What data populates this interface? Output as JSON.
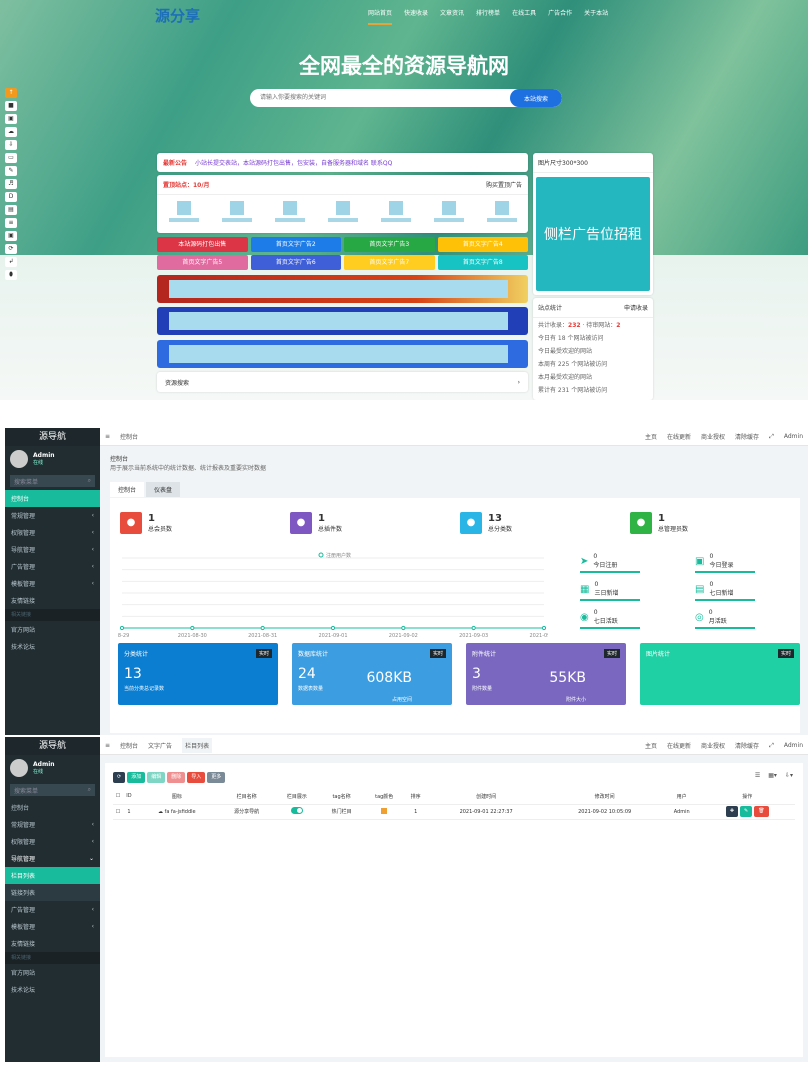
{
  "site": {
    "logo": "源分享",
    "nav": [
      "网站首页",
      "快速收录",
      "文章资讯",
      "排行榜单",
      "在线工具",
      "广告合作",
      "关于本站"
    ],
    "headline": "全网最全的资源导航网",
    "search": {
      "placeholder": "请输入你要搜索的关键词",
      "button": "本站搜索"
    },
    "float_tools": [
      "↑",
      "■",
      "▣",
      "☁",
      "⇩",
      "▭",
      "✎",
      "♬",
      "D",
      "▤",
      "≡",
      "▣",
      "⟳",
      "↲",
      "⬮"
    ],
    "notice": {
      "label": "最新公告",
      "text": "小站长提交表站，本站源码打包出售，包安装，自备服务器和域名 联系QQ"
    },
    "recommend": {
      "title": "置顶站点：10/月",
      "buy": "购买置顶广告"
    },
    "ad_buttons": [
      {
        "label": "本站源码打包出售",
        "color": "#dc3545"
      },
      {
        "label": "首页文字广告2",
        "color": "#1e7ce8"
      },
      {
        "label": "首页文字广告3",
        "color": "#28a745"
      },
      {
        "label": "首页文字广告4",
        "color": "#ffc107"
      },
      {
        "label": "首页文字广告5",
        "color": "#e06c9f"
      },
      {
        "label": "首页文字广告6",
        "color": "#3f5fd8"
      },
      {
        "label": "首页文字广告7",
        "color": "#ffcd1f"
      },
      {
        "label": "首页文字广告8",
        "color": "#17c3c3"
      }
    ],
    "resource_search": "资源搜索",
    "side_ad": {
      "title": "图片尺寸300*300",
      "text": "侧栏广告位招租",
      "color": "#25b7bf"
    },
    "stats": {
      "title": "站点统计",
      "apply": "申请收录",
      "total_label": "共计收录：",
      "total": "232",
      "pending_label": "待审网站：",
      "pending": "2",
      "lines": [
        "今日有 18 个网站被访问",
        "今日最受欢迎的网站",
        "本周有 225 个网站被访问",
        "本月最受欢迎的网站",
        "累计有 231 个网站被访问"
      ]
    }
  },
  "admin": {
    "brand": "源导航",
    "user": "Admin",
    "status": "在线",
    "search_placeholder": "搜索菜单",
    "menu": [
      "控制台",
      "常规管理",
      "权限管理",
      "导航管理",
      "广告管理",
      "模板管理",
      "友情链接"
    ],
    "submenu": [
      "栏目列表",
      "链接列表"
    ],
    "section": "相关链接",
    "links": [
      "官方网站",
      "技术论坛"
    ],
    "header": [
      "主页",
      "在线更新",
      "商业授权",
      "清除缓存"
    ],
    "dashboard": {
      "crumb": "控制台",
      "title": "控制台",
      "desc": "用于展示当前系统中的统计数据、统计报表及重要实时数据",
      "tabs": [
        "控制台",
        "仪表盘"
      ],
      "cards": [
        {
          "value": "1",
          "label": "总会员数",
          "color": "#e74c3c"
        },
        {
          "value": "1",
          "label": "总插件数",
          "color": "#7e57c2"
        },
        {
          "value": "13",
          "label": "总分类数",
          "color": "#29b6e6"
        },
        {
          "value": "1",
          "label": "总管理员数",
          "color": "#2fb344"
        }
      ],
      "chart_data": {
        "type": "line",
        "legend": "注册用户数",
        "categories": [
          "08-29",
          "2021-08-30",
          "2021-08-31",
          "2021-09-01",
          "2021-09-02",
          "2021-09-03",
          "2021-09-04"
        ],
        "values": [
          0,
          0,
          0,
          0,
          0,
          0,
          0
        ],
        "color": "#18bc9c"
      },
      "mini": [
        {
          "value": "0",
          "label": "今日注册"
        },
        {
          "value": "0",
          "label": "今日登录"
        },
        {
          "value": "0",
          "label": "三日新增"
        },
        {
          "value": "0",
          "label": "七日新增"
        },
        {
          "value": "0",
          "label": "七日活跃"
        },
        {
          "value": "0",
          "label": "月活跃"
        }
      ],
      "bottom": [
        {
          "title": "分类统计",
          "tag": "实时",
          "v1": "13",
          "f1": "当前分类总记录数",
          "color": "#0b7ed1"
        },
        {
          "title": "数据库统计",
          "tag": "实时",
          "v1": "24",
          "f1": "数据表数量",
          "v2": "608KB",
          "f2": "占用空间",
          "color": "#3c9de0"
        },
        {
          "title": "附件统计",
          "tag": "实时",
          "v1": "3",
          "f1": "附件数量",
          "v2": "55KB",
          "f2": "附件大小",
          "color": "#7a68c0"
        },
        {
          "title": "图片统计",
          "tag": "实时",
          "color": "#1fd0a4"
        }
      ]
    },
    "list": {
      "tabs": [
        "控制台",
        "文字广告",
        "栏目列表"
      ],
      "toolbar": [
        "添加",
        "编辑",
        "删除",
        "导入",
        "更多"
      ],
      "columns": [
        "ID",
        "图标",
        "栏目名称",
        "栏目展示",
        "tag名称",
        "tag颜色",
        "排序",
        "创建时间",
        "修改时间",
        "用户",
        "操作"
      ],
      "rows": [
        {
          "id": "1",
          "icon": "fa fa-jsfiddle",
          "name": "源分享导航",
          "show": true,
          "tag": "热门栏目",
          "tag_color": "#f0a030",
          "sort": "1",
          "created": "2021-09-01 22:27:37",
          "updated": "2021-09-02 10:05:09",
          "user": "Admin"
        }
      ]
    }
  }
}
